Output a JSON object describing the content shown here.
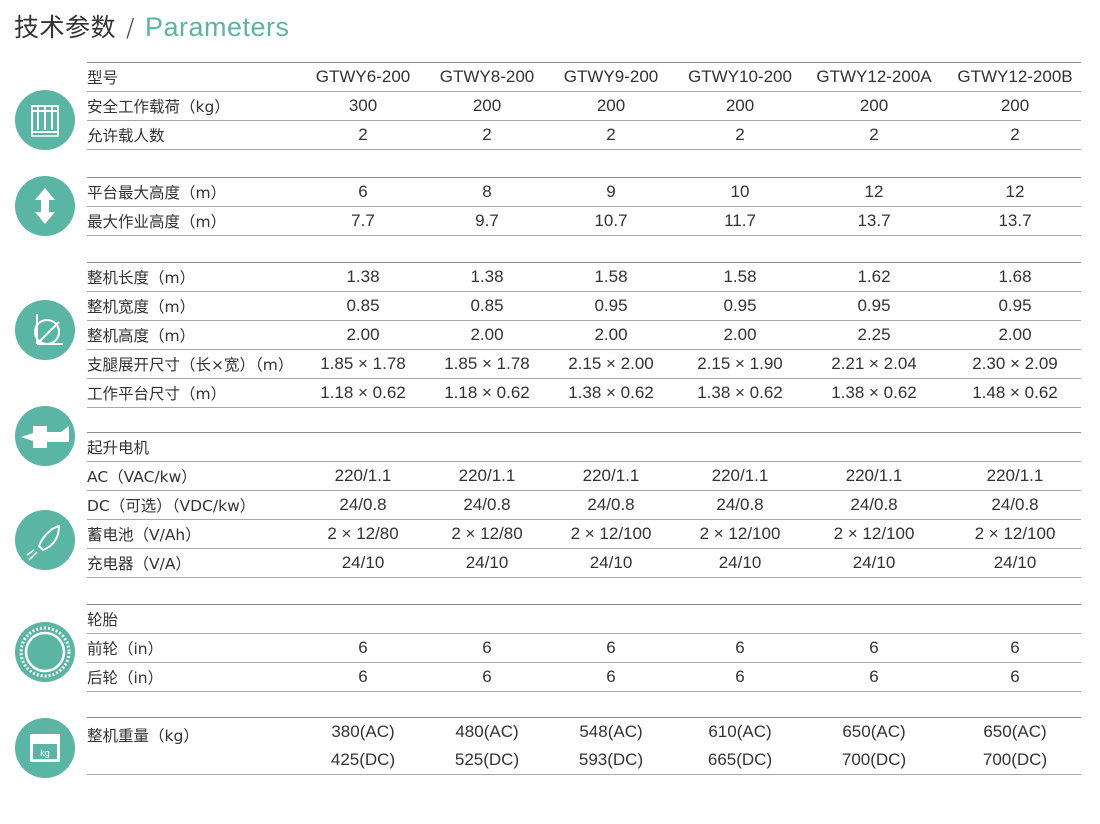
{
  "title": {
    "cn": "技术参数",
    "sep": "/",
    "en": "Parameters"
  },
  "accent": "#5bb5a5",
  "groups": [
    {
      "icon": "platform-icon",
      "rows": [
        {
          "label": "型号",
          "values": [
            "GTWY6-200",
            "GTWY8-200",
            "GTWY9-200",
            "GTWY10-200",
            "GTWY12-200A",
            "GTWY12-200B"
          ]
        },
        {
          "label": "安全工作载荷（kg）",
          "values": [
            "300",
            "200",
            "200",
            "200",
            "200",
            "200"
          ]
        },
        {
          "label": "允许载人数",
          "values": [
            "2",
            "2",
            "2",
            "2",
            "2",
            "2"
          ]
        }
      ]
    },
    {
      "icon": "height-arrows-icon",
      "rows": [
        {
          "label": "平台最大高度（m）",
          "values": [
            "6",
            "8",
            "9",
            "10",
            "12",
            "12"
          ]
        },
        {
          "label": "最大作业高度（m）",
          "values": [
            "7.7",
            "9.7",
            "10.7",
            "11.7",
            "13.7",
            "13.7"
          ]
        }
      ]
    },
    {
      "icon": "dimensions-axes-icon",
      "rows": [
        {
          "label": "整机长度（m）",
          "values": [
            "1.38",
            "1.38",
            "1.58",
            "1.58",
            "1.62",
            "1.68"
          ]
        },
        {
          "label": "整机宽度（m）",
          "values": [
            "0.85",
            "0.85",
            "0.95",
            "0.95",
            "0.95",
            "0.95"
          ]
        },
        {
          "label": "整机高度（m）",
          "values": [
            "2.00",
            "2.00",
            "2.00",
            "2.00",
            "2.25",
            "2.00"
          ]
        },
        {
          "label": "支腿展开尺寸（长×宽）（m）",
          "values": [
            "1.85 × 1.78",
            "1.85 × 1.78",
            "2.15 × 2.00",
            "2.15 × 1.90",
            "2.21 × 2.04",
            "2.30 × 2.09"
          ]
        },
        {
          "label": "工作平台尺寸（m）",
          "values": [
            "1.18 × 0.62",
            "1.18 × 0.62",
            "1.38 × 0.62",
            "1.38 × 0.62",
            "1.38 × 0.62",
            "1.48 × 0.62"
          ]
        }
      ]
    },
    {
      "icon": "motor-icon",
      "rows": [
        {
          "label": "起升电机",
          "values": [
            "",
            "",
            "",
            "",
            "",
            ""
          ]
        },
        {
          "label": "AC（VAC/kw）",
          "values": [
            "220/1.1",
            "220/1.1",
            "220/1.1",
            "220/1.1",
            "220/1.1",
            "220/1.1"
          ]
        },
        {
          "label": "DC（可选）（VDC/kw）",
          "values": [
            "24/0.8",
            "24/0.8",
            "24/0.8",
            "24/0.8",
            "24/0.8",
            "24/0.8"
          ]
        },
        {
          "label": "蓄电池（V/Ah）",
          "values": [
            "2 × 12/80",
            "2 × 12/80",
            "2 × 12/100",
            "2 × 12/100",
            "2 × 12/100",
            "2 × 12/100"
          ]
        },
        {
          "label": "充电器（V/A）",
          "values": [
            "24/10",
            "24/10",
            "24/10",
            "24/10",
            "24/10",
            "24/10"
          ]
        }
      ]
    },
    {
      "icon": "tire-icon",
      "rows": [
        {
          "label": "轮胎",
          "values": [
            "",
            "",
            "",
            "",
            "",
            ""
          ]
        },
        {
          "label": "前轮（in）",
          "values": [
            "6",
            "6",
            "6",
            "6",
            "6",
            "6"
          ]
        },
        {
          "label": "后轮（in）",
          "values": [
            "6",
            "6",
            "6",
            "6",
            "6",
            "6"
          ]
        }
      ]
    },
    {
      "icon": "weight-kg-icon",
      "icon_text": "kg",
      "rows": [
        {
          "label": "整机重量（kg）",
          "values": [
            "380(AC)",
            "480(AC)",
            "548(AC)",
            "610(AC)",
            "650(AC)",
            "650(AC)"
          ],
          "values2": [
            "425(DC)",
            "525(DC)",
            "593(DC)",
            "665(DC)",
            "700(DC)",
            "700(DC)"
          ]
        }
      ]
    }
  ]
}
